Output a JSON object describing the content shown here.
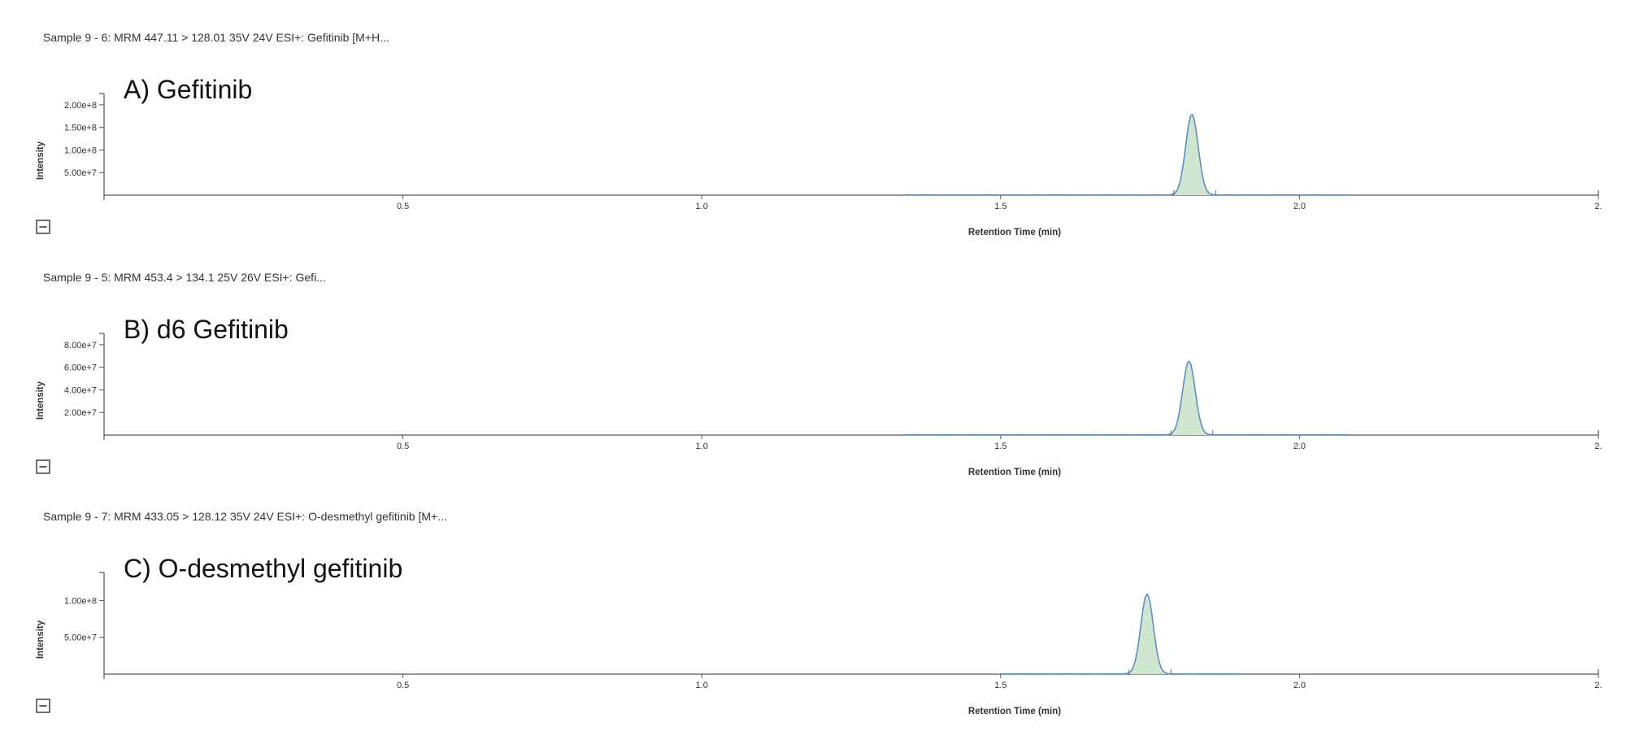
{
  "chart_data": [
    {
      "type": "line",
      "header": "Sample 9 - 6: MRM 447.11 > 128.01 35V 24V ESI+: Gefitinib [M+H...",
      "annotation": "A) Gefitinib",
      "xlabel": "Retention Time (min)",
      "ylabel": "Intensity",
      "xlim": [
        0,
        2.5
      ],
      "ylim": [
        0,
        225000000.0
      ],
      "x_ticks": [
        {
          "value": 0.5,
          "label": "0.5"
        },
        {
          "value": 1.0,
          "label": "1.0"
        },
        {
          "value": 1.5,
          "label": "1.5"
        },
        {
          "value": 2.0,
          "label": "2.0"
        },
        {
          "value": 2.5,
          "label": "2."
        }
      ],
      "y_ticks": [
        {
          "value": 50000000.0,
          "label": "5.00e+7"
        },
        {
          "value": 100000000.0,
          "label": "1.00e+8"
        },
        {
          "value": 150000000.0,
          "label": "1.50e+8"
        },
        {
          "value": 200000000.0,
          "label": "2.00e+8"
        }
      ],
      "series": [
        {
          "color": "#5b8fc9",
          "fill": "#cfe6cf",
          "baseline_range": [
            1.34,
            2.08
          ],
          "peak_rt": 1.82,
          "peak_height": 178000000.0,
          "peak_sigma": 0.0105,
          "integration_range": [
            1.79,
            1.86
          ]
        }
      ]
    },
    {
      "type": "line",
      "header": "Sample 9 - 5: MRM 453.4 > 134.1 25V 26V ESI+: Gefi...",
      "annotation": "B) d6 Gefitinib",
      "xlabel": "Retention Time (min)",
      "ylabel": "Intensity",
      "xlim": [
        0,
        2.5
      ],
      "ylim": [
        0,
        90000000.0
      ],
      "x_ticks": [
        {
          "value": 0.5,
          "label": "0.5"
        },
        {
          "value": 1.0,
          "label": "1.0"
        },
        {
          "value": 1.5,
          "label": "1.5"
        },
        {
          "value": 2.0,
          "label": "2.0"
        },
        {
          "value": 2.5,
          "label": "2."
        }
      ],
      "y_ticks": [
        {
          "value": 20000000.0,
          "label": "2.00e+7"
        },
        {
          "value": 40000000.0,
          "label": "4.00e+7"
        },
        {
          "value": 60000000.0,
          "label": "6.00e+7"
        },
        {
          "value": 80000000.0,
          "label": "8.00e+7"
        }
      ],
      "series": [
        {
          "color": "#5b8fc9",
          "fill": "#cfe6cf",
          "baseline_range": [
            1.34,
            2.08
          ],
          "peak_rt": 1.815,
          "peak_height": 65000000.0,
          "peak_sigma": 0.0105,
          "integration_range": [
            1.785,
            1.855
          ]
        }
      ]
    },
    {
      "type": "line",
      "header": "Sample 9 - 7: MRM 433.05 > 128.12 35V 24V ESI+: O-desmethyl gefitinib [M+...",
      "annotation": "C) O-desmethyl gefitinib",
      "xlabel": "Retention Time (min)",
      "ylabel": "Intensity",
      "xlim": [
        0,
        2.5
      ],
      "ylim": [
        0,
        138000000.0
      ],
      "x_ticks": [
        {
          "value": 0.5,
          "label": "0.5"
        },
        {
          "value": 1.0,
          "label": "1.0"
        },
        {
          "value": 1.5,
          "label": "1.5"
        },
        {
          "value": 2.0,
          "label": "2.0"
        },
        {
          "value": 2.5,
          "label": "2."
        }
      ],
      "y_ticks": [
        {
          "value": 50000000.0,
          "label": "5.00e+7"
        },
        {
          "value": 100000000.0,
          "label": "1.00e+8"
        }
      ],
      "series": [
        {
          "color": "#5b8fc9",
          "fill": "#cfe6cf",
          "baseline_range": [
            1.5,
            1.9
          ],
          "peak_rt": 1.745,
          "peak_height": 108000000.0,
          "peak_sigma": 0.0105,
          "integration_range": [
            1.715,
            1.785
          ]
        }
      ]
    }
  ]
}
